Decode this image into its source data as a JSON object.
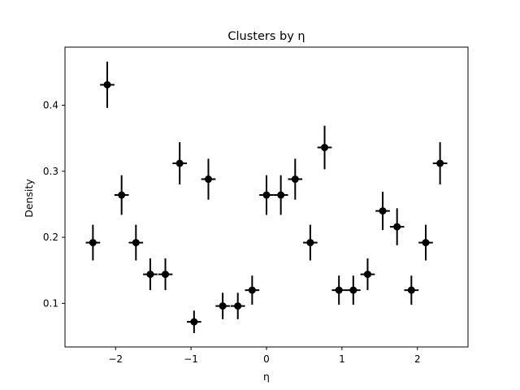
{
  "chart_data": {
    "type": "scatter",
    "title": "Clusters by η",
    "xlabel": "η",
    "ylabel": "Density",
    "xlim": [
      -2.67,
      2.67
    ],
    "ylim": [
      0.034,
      0.488
    ],
    "xticks": [
      -2,
      -1,
      0,
      1,
      2
    ],
    "xtick_labels": [
      "−2",
      "−1",
      "0",
      "1",
      "2"
    ],
    "yticks": [
      0.1,
      0.2,
      0.3,
      0.4
    ],
    "ytick_labels": [
      "0.1",
      "0.2",
      "0.3",
      "0.4"
    ],
    "grid": false,
    "color": "#000000",
    "x_halfwidth": 0.095,
    "points": [
      {
        "x": -2.3,
        "y": 0.192,
        "yerr": 0.027
      },
      {
        "x": -2.11,
        "y": 0.431,
        "yerr": 0.035
      },
      {
        "x": -1.92,
        "y": 0.264,
        "yerr": 0.03
      },
      {
        "x": -1.73,
        "y": 0.192,
        "yerr": 0.027
      },
      {
        "x": -1.54,
        "y": 0.144,
        "yerr": 0.024
      },
      {
        "x": -1.34,
        "y": 0.144,
        "yerr": 0.024
      },
      {
        "x": -1.15,
        "y": 0.312,
        "yerr": 0.032
      },
      {
        "x": -0.96,
        "y": 0.072,
        "yerr": 0.017
      },
      {
        "x": -0.77,
        "y": 0.288,
        "yerr": 0.031
      },
      {
        "x": -0.58,
        "y": 0.096,
        "yerr": 0.02
      },
      {
        "x": -0.38,
        "y": 0.096,
        "yerr": 0.02
      },
      {
        "x": -0.19,
        "y": 0.12,
        "yerr": 0.022
      },
      {
        "x": 0.0,
        "y": 0.264,
        "yerr": 0.03
      },
      {
        "x": 0.19,
        "y": 0.264,
        "yerr": 0.03
      },
      {
        "x": 0.38,
        "y": 0.288,
        "yerr": 0.031
      },
      {
        "x": 0.58,
        "y": 0.192,
        "yerr": 0.027
      },
      {
        "x": 0.77,
        "y": 0.336,
        "yerr": 0.033
      },
      {
        "x": 0.96,
        "y": 0.12,
        "yerr": 0.022
      },
      {
        "x": 1.15,
        "y": 0.12,
        "yerr": 0.022
      },
      {
        "x": 1.34,
        "y": 0.144,
        "yerr": 0.024
      },
      {
        "x": 1.54,
        "y": 0.24,
        "yerr": 0.029
      },
      {
        "x": 1.73,
        "y": 0.216,
        "yerr": 0.028
      },
      {
        "x": 1.92,
        "y": 0.12,
        "yerr": 0.022
      },
      {
        "x": 2.11,
        "y": 0.192,
        "yerr": 0.027
      },
      {
        "x": 2.3,
        "y": 0.312,
        "yerr": 0.032
      }
    ]
  }
}
